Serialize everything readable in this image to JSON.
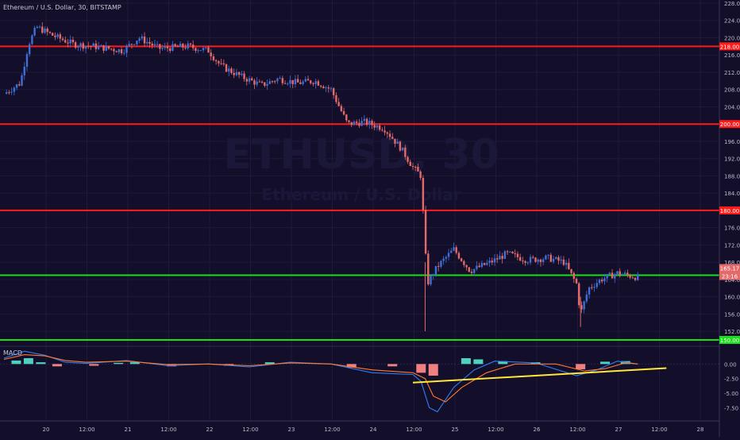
{
  "header": {
    "title": "Ethereum / U.S. Dollar, 30, BITSTAMP"
  },
  "watermark": {
    "symbol": "ETHUSD, 30",
    "subtitle": "Ethereum / U.S. Dollar"
  },
  "colors": {
    "background": "#130f2b",
    "up_candle": "#3f6fd6",
    "down_candle": "#e46a6a",
    "resistance": "#ff1a1a",
    "support": "#16e016",
    "trendline": "#ffe83a",
    "macd_line": "#2f7df0",
    "signal_line": "#ff7a2e",
    "hist_pos": "#4fd1bf",
    "hist_neg": "#f08080",
    "axis_text": "#b8b8c8"
  },
  "chart_data": [
    {
      "type": "candlestick",
      "title": "Ethereum / U.S. Dollar, 30, BITSTAMP",
      "ylim": [
        150,
        228
      ],
      "y_ticks": [
        152,
        156,
        160,
        164,
        168,
        172,
        176,
        180,
        184,
        188,
        192,
        196,
        200,
        204,
        208,
        212,
        216,
        220,
        224,
        228
      ],
      "x_tick_labels": [
        "20",
        "12:00",
        "21",
        "12:00",
        "22",
        "12:00",
        "23",
        "12:00",
        "24",
        "12:00",
        "25",
        "12:00",
        "26",
        "12:00",
        "27",
        "12:00",
        "28"
      ],
      "price_path": [
        {
          "t": 0.0,
          "p": 207.0
        },
        {
          "t": 0.4,
          "p": 209.5
        },
        {
          "t": 0.6,
          "p": 218.5
        },
        {
          "t": 0.8,
          "p": 222.5
        },
        {
          "t": 1.2,
          "p": 220.5
        },
        {
          "t": 1.7,
          "p": 218.5
        },
        {
          "t": 2.2,
          "p": 218.0
        },
        {
          "t": 2.9,
          "p": 217.0
        },
        {
          "t": 3.3,
          "p": 220.0
        },
        {
          "t": 3.8,
          "p": 217.5
        },
        {
          "t": 4.5,
          "p": 218.0
        },
        {
          "t": 5.0,
          "p": 217.0
        },
        {
          "t": 5.3,
          "p": 213.5
        },
        {
          "t": 5.8,
          "p": 211.0
        },
        {
          "t": 6.3,
          "p": 209.0
        },
        {
          "t": 6.7,
          "p": 210.5
        },
        {
          "t": 7.2,
          "p": 209.5
        },
        {
          "t": 7.6,
          "p": 210.0
        },
        {
          "t": 8.0,
          "p": 208.0
        },
        {
          "t": 8.4,
          "p": 200.0
        },
        {
          "t": 8.8,
          "p": 200.5
        },
        {
          "t": 9.3,
          "p": 199.0
        },
        {
          "t": 9.7,
          "p": 194.5
        },
        {
          "t": 10.0,
          "p": 190.0
        },
        {
          "t": 10.2,
          "p": 188.0
        },
        {
          "t": 10.35,
          "p": 163.0
        },
        {
          "t": 10.6,
          "p": 167.0
        },
        {
          "t": 11.0,
          "p": 171.0
        },
        {
          "t": 11.4,
          "p": 166.0
        },
        {
          "t": 11.9,
          "p": 168.0
        },
        {
          "t": 12.3,
          "p": 170.0
        },
        {
          "t": 12.8,
          "p": 168.5
        },
        {
          "t": 13.3,
          "p": 169.0
        },
        {
          "t": 13.7,
          "p": 168.0
        },
        {
          "t": 14.0,
          "p": 163.0
        },
        {
          "t": 14.1,
          "p": 156.0
        },
        {
          "t": 14.3,
          "p": 162.0
        },
        {
          "t": 14.6,
          "p": 164.0
        },
        {
          "t": 15.0,
          "p": 165.5
        },
        {
          "t": 15.5,
          "p": 164.5
        }
      ],
      "resistance_levels": [
        218.0,
        200.0,
        180.0
      ],
      "support_levels": [
        165.0,
        150.0
      ],
      "current_price": 165.17,
      "labels": {
        "level_218": "218.00",
        "level_200": "200.00",
        "level_180": "180.00",
        "level_165": "165.00",
        "level_150": "150.00",
        "current_price": "165.17",
        "countdown": "23:16"
      }
    },
    {
      "type": "line",
      "title": "MACD",
      "ylim": [
        -9.5,
        2.5
      ],
      "y_ticks": [
        0.0,
        -2.5,
        -5.0,
        -7.5
      ],
      "y_tick_labels": [
        "0.00",
        "-2.50",
        "-5.00",
        "-7.50"
      ],
      "series": [
        {
          "name": "",
          "points": [
            [
              0,
              1.0
            ],
            [
              0.5,
              2.2
            ],
            [
              1.0,
              1.5
            ],
            [
              1.5,
              0.3
            ],
            [
              2.0,
              0.1
            ],
            [
              3.0,
              0.6
            ],
            [
              4.0,
              -0.3
            ],
            [
              5.0,
              0.0
            ],
            [
              6.0,
              -0.5
            ],
            [
              7.0,
              0.3
            ],
            [
              8.0,
              0.0
            ],
            [
              9.0,
              -1.5
            ],
            [
              10.0,
              -1.8
            ],
            [
              10.2,
              -3.0
            ],
            [
              10.4,
              -7.5
            ],
            [
              10.6,
              -8.2
            ],
            [
              11.0,
              -4.0
            ],
            [
              11.5,
              -1.0
            ],
            [
              12.0,
              0.5
            ],
            [
              13.0,
              0.2
            ],
            [
              14.0,
              -2.0
            ],
            [
              14.5,
              -1.0
            ],
            [
              15.0,
              0.5
            ],
            [
              15.5,
              0.0
            ]
          ]
        },
        {
          "name": "",
          "points": [
            [
              0,
              0.8
            ],
            [
              0.5,
              1.6
            ],
            [
              1.0,
              1.4
            ],
            [
              1.5,
              0.6
            ],
            [
              2.0,
              0.3
            ],
            [
              3.0,
              0.5
            ],
            [
              4.0,
              -0.1
            ],
            [
              5.0,
              0.0
            ],
            [
              6.0,
              -0.3
            ],
            [
              7.0,
              0.2
            ],
            [
              8.0,
              0.0
            ],
            [
              9.0,
              -1.0
            ],
            [
              10.0,
              -1.5
            ],
            [
              10.3,
              -2.5
            ],
            [
              10.5,
              -5.5
            ],
            [
              10.8,
              -6.5
            ],
            [
              11.2,
              -4.0
            ],
            [
              11.8,
              -1.5
            ],
            [
              12.5,
              0.0
            ],
            [
              13.5,
              0.0
            ],
            [
              14.2,
              -1.2
            ],
            [
              14.7,
              -0.8
            ],
            [
              15.2,
              0.2
            ],
            [
              15.5,
              0.0
            ]
          ]
        }
      ],
      "histogram": [
        {
          "t": 0.3,
          "v": 0.6
        },
        {
          "t": 0.6,
          "v": 1.0
        },
        {
          "t": 0.9,
          "v": 0.3
        },
        {
          "t": 1.3,
          "v": -0.4
        },
        {
          "t": 2.2,
          "v": -0.3
        },
        {
          "t": 2.8,
          "v": 0.2
        },
        {
          "t": 3.2,
          "v": 0.3
        },
        {
          "t": 4.1,
          "v": -0.4
        },
        {
          "t": 5.5,
          "v": -0.3
        },
        {
          "t": 6.5,
          "v": 0.3
        },
        {
          "t": 8.5,
          "v": -0.6
        },
        {
          "t": 9.5,
          "v": -0.4
        },
        {
          "t": 10.2,
          "v": -1.5
        },
        {
          "t": 10.5,
          "v": -2.0
        },
        {
          "t": 11.3,
          "v": 1.0
        },
        {
          "t": 11.6,
          "v": 0.8
        },
        {
          "t": 12.2,
          "v": 0.5
        },
        {
          "t": 13.0,
          "v": 0.3
        },
        {
          "t": 14.1,
          "v": -0.9
        },
        {
          "t": 14.7,
          "v": 0.4
        },
        {
          "t": 15.2,
          "v": 0.5
        }
      ],
      "trendline": [
        [
          10.0,
          -3.2
        ],
        [
          16.2,
          -0.7
        ]
      ]
    }
  ]
}
